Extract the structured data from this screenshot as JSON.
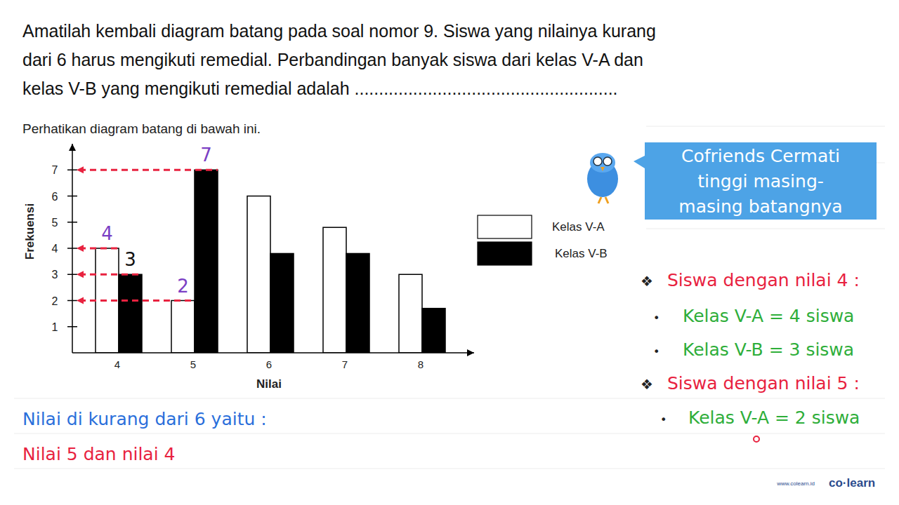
{
  "question": {
    "lines": [
      "Amatilah kembali diagram batang pada soal nomor 9. Siswa yang nilainya kurang",
      "dari 6 harus mengikuti remedial. Perbandingan banyak siswa dari kelas V-A dan",
      "kelas V-B yang mengikuti remedial adalah ......................................................"
    ]
  },
  "chart_data": {
    "type": "bar",
    "title": "Perhatikan diagram batang di bawah ini.",
    "x_label": "Nilai",
    "y_label": "Frekuensi",
    "categories": [
      "4",
      "5",
      "6",
      "7",
      "8"
    ],
    "series": [
      {
        "name": "Kelas V-A",
        "color": "#ffffff",
        "values": [
          4,
          2,
          6,
          4.8,
          3
        ]
      },
      {
        "name": "Kelas V-B",
        "color": "#000000",
        "values": [
          3,
          7,
          3.8,
          3.8,
          1.7
        ]
      }
    ],
    "ylim": [
      0,
      8
    ],
    "yticks": [
      1,
      2,
      3,
      4,
      5,
      6,
      7
    ],
    "legend": "right",
    "annotations": [
      {
        "text": "4",
        "color": "#7b3fc4"
      },
      {
        "text": "3",
        "color": "#111111"
      },
      {
        "text": "2",
        "color": "#7b3fc4"
      },
      {
        "text": "7",
        "color": "#7b3fc4"
      }
    ]
  },
  "callout": {
    "lines": [
      "Cofriends Cermati",
      "tinggi masing-",
      "masing batangnya"
    ],
    "color": "#4da3e6"
  },
  "notes": [
    {
      "bullet": "❖",
      "text": "Siswa dengan nilai 4 :",
      "color": "#e8223f"
    },
    {
      "bullet": "•",
      "text": "Kelas V-A = 4 siswa",
      "color": "#2eae3a"
    },
    {
      "bullet": "•",
      "text": "Kelas V-B = 3 siswa",
      "color": "#2eae3a"
    },
    {
      "bullet": "❖",
      "text": "Siswa dengan nilai 5 :",
      "color": "#e8223f"
    },
    {
      "bullet": "•",
      "text": "Kelas V-A = 2 siswa",
      "color": "#2eae3a"
    }
  ],
  "conclusion": [
    {
      "text": "Nilai di kurang dari 6 yaitu :",
      "color": "#2a6fdb"
    },
    {
      "text": "Nilai 5 dan nilai 4",
      "color": "#e8223f"
    }
  ],
  "brand": {
    "url": "www.colearn.id",
    "logo": "co·learn"
  }
}
